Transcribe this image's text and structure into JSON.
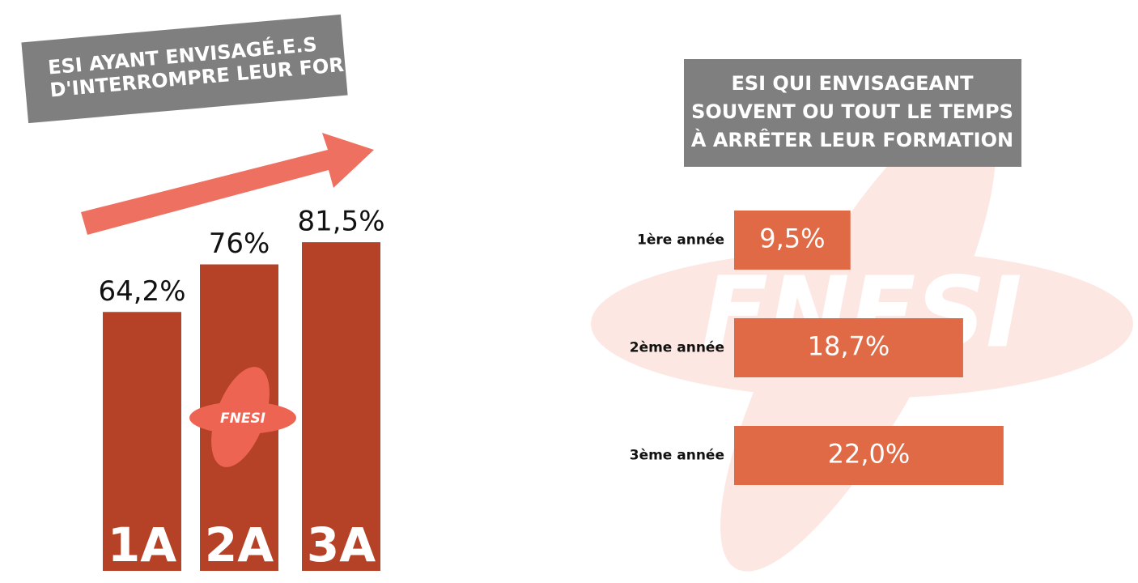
{
  "logo_text": "FNESI",
  "chart_data": [
    {
      "type": "bar",
      "title": [
        "ESI AYANT ENVISAGÉ.E.S",
        "D'INTERROMPRE LEUR FORMATION"
      ],
      "categories": [
        "1A",
        "2A",
        "3A"
      ],
      "values": [
        64.2,
        76,
        81.5
      ],
      "value_labels": [
        "64,2%",
        "76%",
        "81,5%"
      ],
      "color": "#b54126"
    },
    {
      "type": "hbar",
      "title": [
        "ESI QUI ENVISAGEANT",
        "SOUVENT OU TOUT LE TEMPS",
        "À ARRÊTER LEUR FORMATION"
      ],
      "categories": [
        "1ère année",
        "2ème année",
        "3ème année"
      ],
      "values": [
        9.5,
        18.7,
        22.0
      ],
      "value_labels": [
        "9,5%",
        "18,7%",
        "22,0%"
      ],
      "color": "#e06a46"
    }
  ]
}
